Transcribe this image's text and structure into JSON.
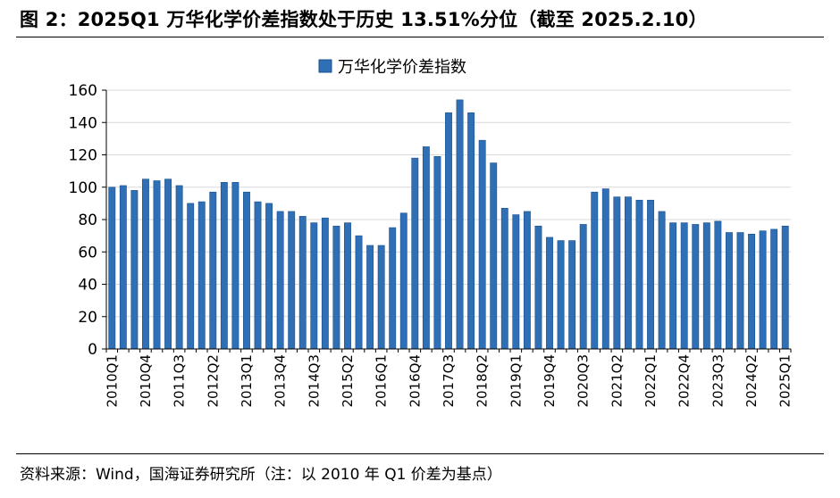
{
  "figure_title": "图 2：2025Q1 万华化学价差指数处于历史 13.51%分位（截至 2025.2.10）",
  "source_note": "资料来源：Wind，国海证券研究所（注：以 2010 年 Q1 价差为基点）",
  "colors": {
    "bar": "#2e6fb6",
    "bar_edge": "#1d4f8a",
    "grid": "#d9d9d9",
    "axis": "#000000"
  },
  "chart_data": {
    "type": "bar",
    "ylim": [
      0,
      160
    ],
    "yticks": [
      0,
      20,
      40,
      60,
      80,
      100,
      120,
      140,
      160
    ],
    "grid": true,
    "legend_position": "top-center",
    "categories": [
      "2010Q1",
      "2010Q2",
      "2010Q3",
      "2010Q4",
      "2011Q1",
      "2011Q2",
      "2011Q3",
      "2011Q4",
      "2012Q1",
      "2012Q2",
      "2012Q3",
      "2012Q4",
      "2013Q1",
      "2013Q2",
      "2013Q3",
      "2013Q4",
      "2014Q1",
      "2014Q2",
      "2014Q3",
      "2014Q4",
      "2015Q1",
      "2015Q2",
      "2015Q3",
      "2015Q4",
      "2016Q1",
      "2016Q2",
      "2016Q3",
      "2016Q4",
      "2017Q1",
      "2017Q2",
      "2017Q3",
      "2017Q4",
      "2018Q1",
      "2018Q2",
      "2018Q3",
      "2018Q4",
      "2019Q1",
      "2019Q2",
      "2019Q3",
      "2019Q4",
      "2020Q1",
      "2020Q2",
      "2020Q3",
      "2020Q4",
      "2021Q1",
      "2021Q2",
      "2021Q3",
      "2021Q4",
      "2022Q1",
      "2022Q2",
      "2022Q3",
      "2022Q4",
      "2023Q1",
      "2023Q2",
      "2023Q3",
      "2023Q4",
      "2024Q1",
      "2024Q2",
      "2024Q3",
      "2024Q4",
      "2025Q1"
    ],
    "xtick_labels": [
      "2010Q1",
      "2010Q4",
      "2011Q3",
      "2012Q2",
      "2013Q1",
      "2013Q4",
      "2014Q3",
      "2015Q2",
      "2016Q1",
      "2016Q4",
      "2017Q3",
      "2018Q2",
      "2019Q1",
      "2019Q4",
      "2020Q3",
      "2021Q2",
      "2022Q1",
      "2022Q4",
      "2023Q3",
      "2024Q2",
      "2025Q1"
    ],
    "series": [
      {
        "name": "万华化学价差指数",
        "values": [
          100,
          101,
          98,
          105,
          104,
          105,
          101,
          90,
          91,
          97,
          103,
          103,
          97,
          91,
          90,
          85,
          85,
          82,
          78,
          81,
          76,
          78,
          70,
          64,
          64,
          75,
          84,
          118,
          125,
          119,
          146,
          154,
          146,
          129,
          115,
          87,
          83,
          85,
          76,
          69,
          67,
          67,
          77,
          97,
          99,
          94,
          94,
          92,
          92,
          85,
          78,
          78,
          77,
          78,
          79,
          72,
          72,
          71,
          73,
          74,
          76
        ]
      }
    ]
  }
}
